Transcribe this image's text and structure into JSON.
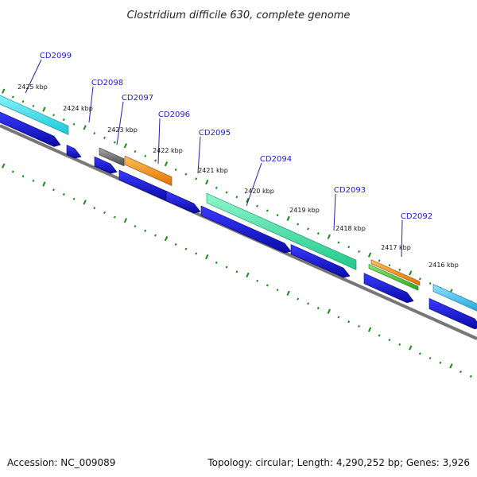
{
  "title": "Clostridium difficile 630, complete genome",
  "footer": {
    "accession": "Accession: NC_009089",
    "summary": "Topology: circular; Length: 4,290,252 bp; Genes: 3,926"
  },
  "colors": {
    "cds_blue": "#1414e0",
    "backbone": "#777777",
    "tick_green": "#1a8a1a",
    "label_blue": "#1a1acc",
    "cyan": "#2ee0e8",
    "sky": "#39c3f0",
    "aqua_green": "#39e6a4",
    "orange": "#ff8a00",
    "grey": "#6a6a6a",
    "green": "#44cc33"
  },
  "kbp_ticks": [
    "2425 kbp",
    "2424 kbp",
    "2423 kbp",
    "2422 kbp",
    "2421 kbp",
    "2420 kbp",
    "2419 kbp",
    "2418 kbp",
    "2417 kbp",
    "2416 kbp"
  ],
  "genes": [
    "CD2099",
    "CD2098",
    "CD2097",
    "CD2096",
    "CD2095",
    "CD2094",
    "CD2093",
    "CD2092"
  ]
}
